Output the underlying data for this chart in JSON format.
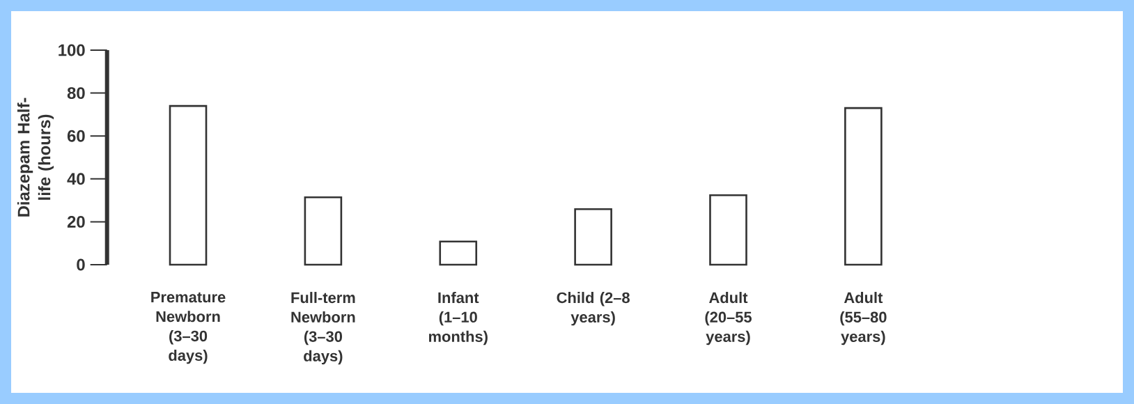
{
  "chart_data": {
    "type": "bar",
    "ylabel": "Diazepam Half-life (hours)",
    "categories": [
      "Premature Newborn (3–30 days)",
      "Full-term Newborn (3–30 days)",
      "Infant (1–10 months)",
      "Child (2–8 years)",
      "Adult (20–55 years)",
      "Adult (55–80 years)"
    ],
    "values": [
      74,
      31.4,
      10.8,
      25.9,
      32.4,
      73
    ],
    "color": "#333333",
    "ylim": [
      0,
      100
    ],
    "yticks": [
      0,
      20,
      40,
      60,
      80,
      100
    ],
    "grid": false
  }
}
